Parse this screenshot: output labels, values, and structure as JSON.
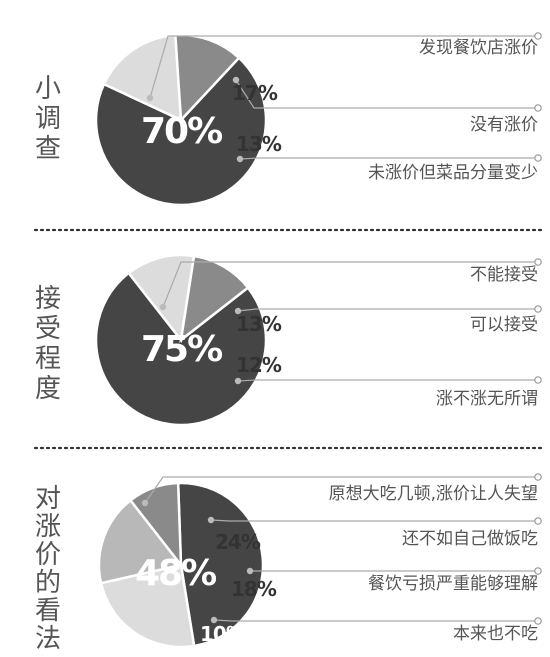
{
  "colors": {
    "dark": "#454545",
    "light": "#dcdcdc",
    "mid": "#8a8a8a",
    "lighter": "#b8b8b8"
  },
  "chart_data": [
    {
      "type": "pie",
      "title": "小调查",
      "slices": [
        {
          "label": "发现餐饮店涨价",
          "value": 70,
          "display": "70%",
          "color": "#454545"
        },
        {
          "label": "没有涨价",
          "value": 17,
          "display": "17%",
          "color": "#dcdcdc"
        },
        {
          "label": "未涨价但菜品分量变少",
          "value": 13,
          "display": "13%",
          "color": "#8a8a8a"
        }
      ]
    },
    {
      "type": "pie",
      "title": "接受程度",
      "slices": [
        {
          "label": "不能接受",
          "value": 75,
          "display": "75%",
          "color": "#454545"
        },
        {
          "label": "可以接受",
          "value": 13,
          "display": "13%",
          "color": "#dcdcdc"
        },
        {
          "label": "涨不涨无所谓",
          "value": 12,
          "display": "12%",
          "color": "#8a8a8a"
        }
      ]
    },
    {
      "type": "pie",
      "title": "对涨价的看法",
      "slices": [
        {
          "label": "原想大吃几顿,涨价让人失望",
          "value": 48,
          "display": "48%",
          "color": "#454545"
        },
        {
          "label": "还不如自己做饭吃",
          "value": 24,
          "display": "24%",
          "color": "#dcdcdc"
        },
        {
          "label": "餐饮亏损严重能够理解",
          "value": 18,
          "display": "18%",
          "color": "#b8b8b8"
        },
        {
          "label": "本来也不吃",
          "value": 10,
          "display": "10%",
          "color": "#8a8a8a"
        }
      ]
    }
  ]
}
